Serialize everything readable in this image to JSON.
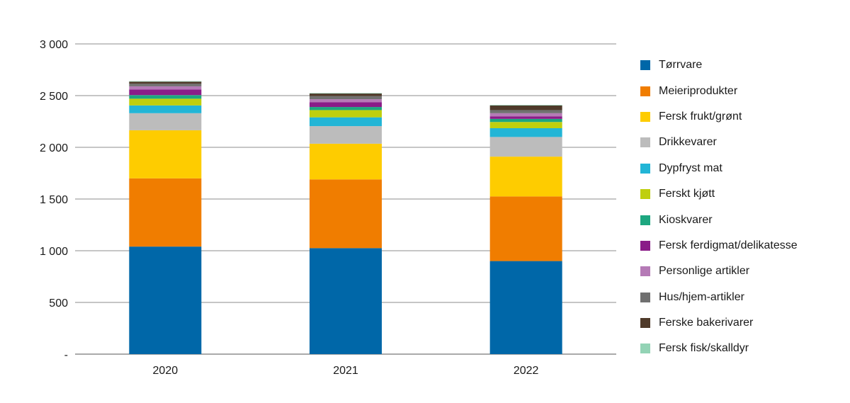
{
  "chart_data": {
    "type": "bar",
    "stacked": true,
    "categories": [
      "2020",
      "2021",
      "2022"
    ],
    "ylim": [
      0,
      3000
    ],
    "yticks": [
      0,
      500,
      1000,
      1500,
      2000,
      2500,
      3000
    ],
    "ytick_labels": [
      "-",
      "500",
      "1 000",
      "1 500",
      "2 000",
      "2 500",
      "3 000"
    ],
    "grid": true,
    "legend_position": "right",
    "xlabel": "",
    "ylabel": "",
    "series": [
      {
        "name": "Tørrvare",
        "color": "#0067a8",
        "values": [
          1040,
          1025,
          900
        ]
      },
      {
        "name": "Meieriprodukter",
        "color": "#f07d00",
        "values": [
          660,
          665,
          625
        ]
      },
      {
        "name": "Fersk frukt/grønt",
        "color": "#fecc00",
        "values": [
          465,
          345,
          385
        ]
      },
      {
        "name": "Drikkevarer",
        "color": "#bcbcbc",
        "values": [
          165,
          170,
          190
        ]
      },
      {
        "name": "Dypfryst mat",
        "color": "#22b5d6",
        "values": [
          75,
          85,
          85
        ]
      },
      {
        "name": "Ferskt kjøtt",
        "color": "#bfcf0e",
        "values": [
          65,
          70,
          60
        ]
      },
      {
        "name": "Kioskvarer",
        "color": "#1da780",
        "values": [
          35,
          30,
          30
        ]
      },
      {
        "name": "Fersk ferdigmat/delikatesse",
        "color": "#8a1c88",
        "values": [
          55,
          45,
          25
        ]
      },
      {
        "name": "Personlige artikler",
        "color": "#b57ab6",
        "values": [
          30,
          30,
          30
        ]
      },
      {
        "name": "Hus/hjem-artikler",
        "color": "#707070",
        "values": [
          25,
          30,
          30
        ]
      },
      {
        "name": "Ferske bakerivarer",
        "color": "#4f3a2a",
        "values": [
          20,
          25,
          45
        ]
      },
      {
        "name": "Fersk fisk/skalldyr",
        "color": "#93d3b5",
        "values": [
          5,
          5,
          5
        ]
      }
    ]
  }
}
